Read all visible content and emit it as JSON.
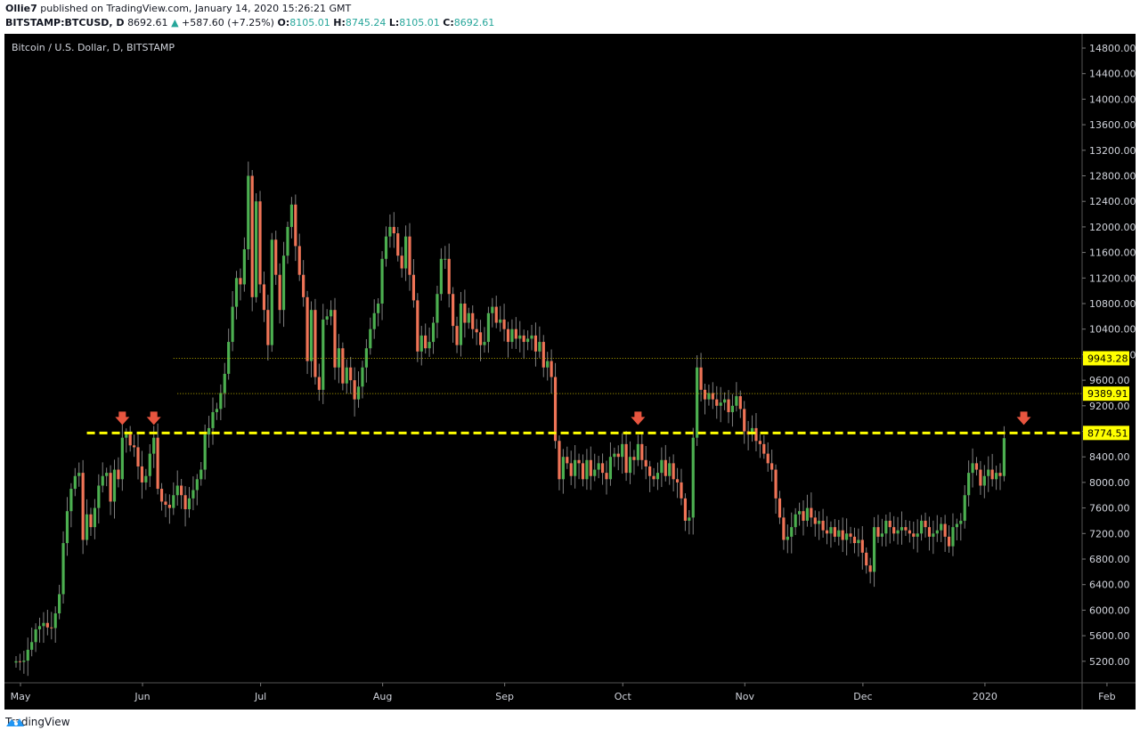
{
  "header": {
    "author": "Ollie7",
    "published_text": "published on TradingView.com, January 14, 2020 15:26:21 GMT",
    "symbol": "BITSTAMP:BTCUSD, D",
    "last_price": "8692.61",
    "change_arrow": "▲",
    "change": "+587.60 (+7.25%)",
    "ohlc": [
      {
        "k": "O:",
        "v": "8105.01"
      },
      {
        "k": "H:",
        "v": "8745.24"
      },
      {
        "k": "L:",
        "v": "8105.01"
      },
      {
        "k": "C:",
        "v": "8692.61"
      }
    ]
  },
  "footer": {
    "brand": "TradingView"
  },
  "colors": {
    "up": "#4caf50",
    "down": "#ef7457",
    "wick": "#808080",
    "level": "#ffff00",
    "arrow": "#e8553f",
    "axis_text": "#d1d4dc",
    "background": "#000000"
  },
  "chart_data": {
    "type": "candlestick",
    "title": "Bitcoin / U.S. Dollar, D, BITSTAMP",
    "xlabel": "",
    "ylabel": "",
    "ylim": [
      4900,
      15000
    ],
    "y_ticks": [
      "14800.00",
      "14400.00",
      "14000.00",
      "13600.00",
      "13200.00",
      "12800.00",
      "12400.00",
      "12000.00",
      "11600.00",
      "11200.00",
      "10800.00",
      "10400.00",
      "10000.00",
      "9600.00",
      "9200.00",
      "8800.00",
      "8400.00",
      "8000.00",
      "7600.00",
      "7200.00",
      "6800.00",
      "6400.00",
      "6000.00",
      "5600.00",
      "5200.00"
    ],
    "x_ticks": [
      {
        "label": "May",
        "day": 0
      },
      {
        "label": "Jun",
        "day": 31
      },
      {
        "label": "Jul",
        "day": 61
      },
      {
        "label": "Aug",
        "day": 92
      },
      {
        "label": "Sep",
        "day": 123
      },
      {
        "label": "Oct",
        "day": 153
      },
      {
        "label": "Nov",
        "day": 184
      },
      {
        "label": "Dec",
        "day": 214
      },
      {
        "label": "2020",
        "day": 245
      },
      {
        "label": "Feb",
        "day": 276
      }
    ],
    "levels": [
      {
        "price": 9943.28,
        "label": "9943.28",
        "style": "dotted",
        "start_day": 40
      },
      {
        "price": 9389.91,
        "label": "9389.91",
        "style": "dotted",
        "start_day": 41
      },
      {
        "price": 8774.51,
        "label": "8774.51",
        "style": "dashed",
        "start_day": 18
      }
    ],
    "arrows_at_days": [
      27,
      35,
      158,
      256
    ],
    "first_open": 5180,
    "closes": [
      5200,
      5190,
      5210,
      5380,
      5500,
      5700,
      5750,
      5800,
      5730,
      5720,
      5950,
      6250,
      7050,
      7550,
      7900,
      8100,
      8150,
      7100,
      7500,
      7300,
      7600,
      7950,
      8100,
      8150,
      7700,
      8200,
      8050,
      8700,
      8750,
      8580,
      8550,
      8250,
      8000,
      8100,
      8450,
      8700,
      7900,
      7700,
      7650,
      7600,
      7800,
      7950,
      7800,
      7580,
      7750,
      7880,
      8050,
      8200,
      8750,
      8850,
      9100,
      9150,
      9400,
      9700,
      10200,
      10750,
      11200,
      11100,
      11650,
      12800,
      10900,
      12400,
      11100,
      10700,
      10150,
      11800,
      11250,
      10700,
      11550,
      12000,
      12350,
      11700,
      11250,
      10900,
      9900,
      10700,
      9650,
      9450,
      10550,
      10600,
      10700,
      9800,
      10100,
      9550,
      9800,
      9600,
      9300,
      9500,
      9800,
      10100,
      10400,
      10650,
      10800,
      11500,
      11850,
      12000,
      11900,
      11550,
      11350,
      11850,
      11250,
      10850,
      10050,
      10300,
      10100,
      10200,
      10500,
      10950,
      11500,
      11500,
      10950,
      10450,
      10150,
      10800,
      10500,
      10650,
      10400,
      10350,
      10150,
      10200,
      10650,
      10750,
      10500,
      10550,
      10400,
      10200,
      10400,
      10250,
      10300,
      10200,
      10250,
      10300,
      10050,
      10200,
      9800,
      9900,
      9650,
      8650,
      8050,
      8400,
      8300,
      8100,
      8350,
      8300,
      8050,
      8350,
      8100,
      8200,
      8300,
      8150,
      8050,
      8400,
      8450,
      8400,
      8600,
      8150,
      8400,
      8350,
      8600,
      8350,
      8250,
      8100,
      8050,
      8150,
      8350,
      8100,
      8300,
      8050,
      8000,
      7750,
      7400,
      7450,
      8700,
      9800,
      9450,
      9300,
      9400,
      9300,
      9200,
      9250,
      9300,
      9100,
      9200,
      9350,
      9150,
      8800,
      8750,
      8850,
      8650,
      8600,
      8450,
      8300,
      8200,
      7750,
      7450,
      7100,
      7150,
      7300,
      7500,
      7550,
      7400,
      7600,
      7450,
      7350,
      7400,
      7250,
      7200,
      7300,
      7150,
      7250,
      7100,
      7200,
      7150,
      7050,
      7100,
      6900,
      6700,
      6600,
      7300,
      7150,
      7200,
      7400,
      7300,
      7200,
      7250,
      7300,
      7250,
      7200,
      7150,
      7200,
      7400,
      7300,
      7150,
      7200,
      7250,
      7350,
      7150,
      7000,
      7300,
      7350,
      7400,
      7800,
      8150,
      8300,
      8200,
      7950,
      8100,
      8200,
      8050,
      8150,
      8100,
      8692.61
    ]
  }
}
